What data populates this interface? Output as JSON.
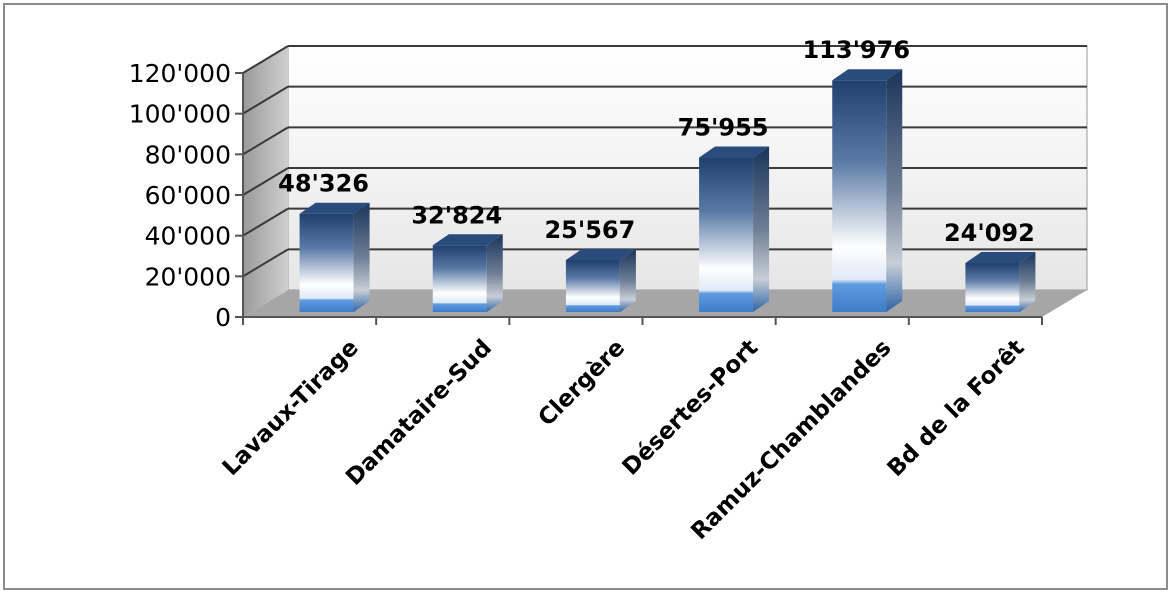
{
  "chart_data": {
    "type": "bar",
    "title": "",
    "xlabel": "",
    "ylabel": "",
    "categories": [
      "Lavaux-Tirage",
      "Damataire-Sud",
      "Clergère",
      "Désertes-Port",
      "Ramuz-Chamblandes",
      "Bd de la Forêt"
    ],
    "values": [
      48326,
      32824,
      25567,
      75955,
      113976,
      24092
    ],
    "data_labels": [
      "48'326",
      "32'824",
      "25'567",
      "75'955",
      "113'976",
      "24'092"
    ],
    "ylim": [
      0,
      120000
    ],
    "yticks": [
      0,
      20000,
      40000,
      60000,
      80000,
      100000,
      120000
    ],
    "ytick_labels": [
      "0",
      "20'000",
      "40'000",
      "60'000",
      "80'000",
      "100'000",
      "120'000"
    ],
    "grid": true,
    "legend": "none",
    "style": "3d-column",
    "colors": {
      "bar_dark": "#1f3f6e",
      "bar_light": "#ffffff",
      "bar_base": "#4f8fd8",
      "floor": "#a6a6a6",
      "wall": "#f0f0f0",
      "grid": "#3a3a3a"
    }
  }
}
